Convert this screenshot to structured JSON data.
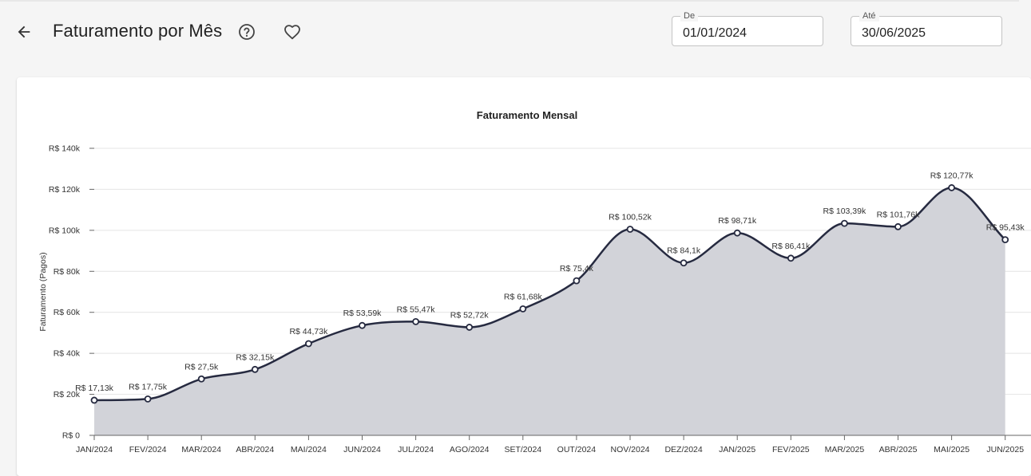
{
  "header": {
    "title": "Faturamento por Mês",
    "back_icon": "arrow-left-icon",
    "help_icon": "help-circle-icon",
    "favorite_icon": "heart-outline-icon"
  },
  "filters": {
    "from": {
      "label": "De",
      "value": "01/01/2024"
    },
    "to": {
      "label": "Até",
      "value": "30/06/2025"
    }
  },
  "colors": {
    "line": "#262a40",
    "area": "#d2d3d9",
    "grid": "#e4e4e4",
    "text": "#333333"
  },
  "chart_data": {
    "type": "area",
    "title": "Faturamento Mensal",
    "xlabel": "",
    "ylabel": "Faturamento (Pagos)",
    "ylim": [
      0,
      140000
    ],
    "y_ticks": [
      0,
      20000,
      40000,
      60000,
      80000,
      100000,
      120000,
      140000
    ],
    "y_tick_labels": [
      "R$ 0",
      "R$ 20k",
      "R$ 40k",
      "R$ 60k",
      "R$ 80k",
      "R$ 100k",
      "R$ 120k",
      "R$ 140k"
    ],
    "grid": true,
    "categories": [
      "JAN/2024",
      "FEV/2024",
      "MAR/2024",
      "ABR/2024",
      "MAI/2024",
      "JUN/2024",
      "JUL/2024",
      "AGO/2024",
      "SET/2024",
      "OUT/2024",
      "NOV/2024",
      "DEZ/2024",
      "JAN/2025",
      "FEV/2025",
      "MAR/2025",
      "ABR/2025",
      "MAI/2025",
      "JUN/2025"
    ],
    "values": [
      17130,
      17750,
      27500,
      32150,
      44730,
      53590,
      55470,
      52720,
      61680,
      75400,
      100520,
      84100,
      98710,
      86410,
      103390,
      101760,
      120770,
      95430
    ],
    "data_labels": [
      "R$ 17,13k",
      "R$ 17,75k",
      "R$ 27,5k",
      "R$ 32,15k",
      "R$ 44,73k",
      "R$ 53,59k",
      "R$ 55,47k",
      "R$ 52,72k",
      "R$ 61,68k",
      "R$ 75,4k",
      "R$ 100,52k",
      "R$ 84,1k",
      "R$ 98,71k",
      "R$ 86,41k",
      "R$ 103,39k",
      "R$ 101,76k",
      "R$ 120,77k",
      "R$ 95,43k"
    ]
  }
}
